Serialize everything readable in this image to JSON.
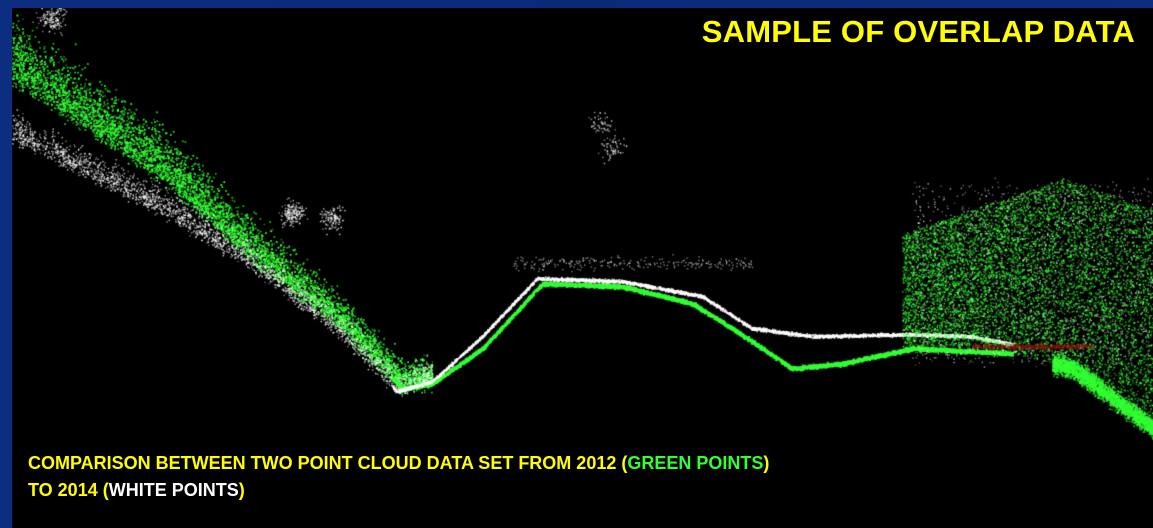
{
  "title": "SAMPLE OF OVERLAP DATA",
  "caption": {
    "line1_prefix": "COMPARISON BETWEEN TWO POINT CLOUD DATA SET FROM 2012 (",
    "line1_green": "GREEN POINTS",
    "line1_suffix": ")",
    "line2_prefix": "TO 2014 (",
    "line2_white": "WHITE POINTS",
    "line2_suffix": ")"
  },
  "colors": {
    "slide_background": "#0b2a78",
    "panel_background": "#000000",
    "title_text": "#ffff00",
    "caption_text": "#ffff00",
    "green_points": "#33ff33",
    "white_points": "#ffffff",
    "red_points": "#a01010"
  }
}
